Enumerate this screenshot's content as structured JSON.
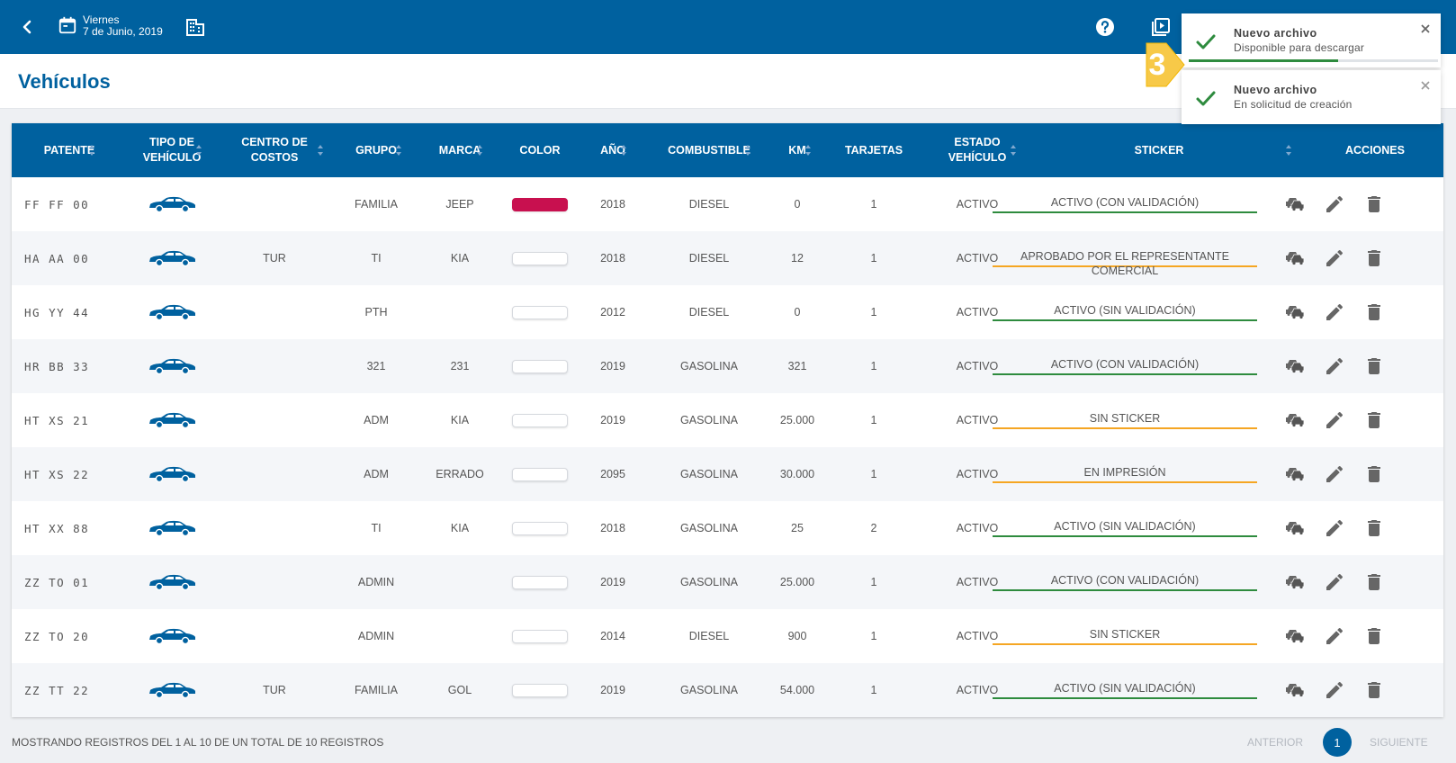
{
  "header": {
    "day": "Viernes",
    "date": "7 de Junio, 2019",
    "icons": [
      "back-arrow-icon",
      "calendar-icon",
      "building-icon",
      "help-icon",
      "play-video-icon"
    ]
  },
  "page_title": "Vehículos",
  "columns": {
    "patente": "PATENTE",
    "tipo": "TIPO DE VEHÍCULO",
    "centro": "CENTRO DE COSTOS",
    "grupo": "GRUPO",
    "marca": "MARCA",
    "color": "COLOR",
    "anio": "AÑO",
    "combustible": "COMBUSTIBLE",
    "km": "KM",
    "tarjetas": "TARJETAS",
    "estado": "ESTADO VEHÍCULO",
    "sticker": "STICKER",
    "acciones": "ACCIONES"
  },
  "rows": [
    {
      "patente": "FF FF 00",
      "centro": "",
      "grupo": "FAMILIA",
      "marca": "JEEP",
      "color": "#c8104f",
      "anio": "2018",
      "combustible": "DIESEL",
      "km": "0",
      "tarjetas": "1",
      "estado": "ACTIVO",
      "sticker": "ACTIVO (CON VALIDACIÓN)",
      "sticker_color": "#2e8b3e"
    },
    {
      "patente": "HA AA 00",
      "centro": "TUR",
      "grupo": "TI",
      "marca": "KIA",
      "color": "#ffffff",
      "anio": "2018",
      "combustible": "DIESEL",
      "km": "12",
      "tarjetas": "1",
      "estado": "ACTIVO",
      "sticker": "APROBADO POR EL REPRESENTANTE COMERCIAL",
      "sticker_color": "#f5a623"
    },
    {
      "patente": "HG YY 44",
      "centro": "",
      "grupo": "PTH",
      "marca": "",
      "color": "#ffffff",
      "anio": "2012",
      "combustible": "DIESEL",
      "km": "0",
      "tarjetas": "1",
      "estado": "ACTIVO",
      "sticker": "ACTIVO (SIN VALIDACIÓN)",
      "sticker_color": "#2e8b3e"
    },
    {
      "patente": "HR BB 33",
      "centro": "",
      "grupo": "321",
      "marca": "231",
      "color": "#ffffff",
      "anio": "2019",
      "combustible": "GASOLINA",
      "km": "321",
      "tarjetas": "1",
      "estado": "ACTIVO",
      "sticker": "ACTIVO (CON VALIDACIÓN)",
      "sticker_color": "#2e8b3e"
    },
    {
      "patente": "HT XS 21",
      "centro": "",
      "grupo": "ADM",
      "marca": "KIA",
      "color": "#ffffff",
      "anio": "2019",
      "combustible": "GASOLINA",
      "km": "25.000",
      "tarjetas": "1",
      "estado": "ACTIVO",
      "sticker": "SIN STICKER",
      "sticker_color": "#f5a623"
    },
    {
      "patente": "HT XS 22",
      "centro": "",
      "grupo": "ADM",
      "marca": "ERRADO",
      "color": "#ffffff",
      "anio": "2095",
      "combustible": "GASOLINA",
      "km": "30.000",
      "tarjetas": "1",
      "estado": "ACTIVO",
      "sticker": "EN IMPRESIÓN",
      "sticker_color": "#f5a623"
    },
    {
      "patente": "HT XX 88",
      "centro": "",
      "grupo": "TI",
      "marca": "KIA",
      "color": "#ffffff",
      "anio": "2018",
      "combustible": "GASOLINA",
      "km": "25",
      "tarjetas": "2",
      "estado": "ACTIVO",
      "sticker": "ACTIVO (SIN VALIDACIÓN)",
      "sticker_color": "#2e8b3e"
    },
    {
      "patente": "ZZ TO 01",
      "centro": "",
      "grupo": "ADMIN",
      "marca": "",
      "color": "#ffffff",
      "anio": "2019",
      "combustible": "GASOLINA",
      "km": "25.000",
      "tarjetas": "1",
      "estado": "ACTIVO",
      "sticker": "ACTIVO (CON VALIDACIÓN)",
      "sticker_color": "#2e8b3e"
    },
    {
      "patente": "ZZ TO 20",
      "centro": "",
      "grupo": "ADMIN",
      "marca": "",
      "color": "#ffffff",
      "anio": "2014",
      "combustible": "DIESEL",
      "km": "900",
      "tarjetas": "1",
      "estado": "ACTIVO",
      "sticker": "SIN STICKER",
      "sticker_color": "#f5a623"
    },
    {
      "patente": "ZZ TT 22",
      "centro": "TUR",
      "grupo": "FAMILIA",
      "marca": "GOL",
      "color": "#ffffff",
      "anio": "2019",
      "combustible": "GASOLINA",
      "km": "54.000",
      "tarjetas": "1",
      "estado": "ACTIVO",
      "sticker": "ACTIVO (SIN VALIDACIÓN)",
      "sticker_color": "#2e8b3e"
    }
  ],
  "footer": {
    "info": "MOSTRANDO REGISTROS DEL 1 AL 10 DE UN TOTAL DE 10 REGISTROS",
    "prev": "ANTERIOR",
    "page": "1",
    "next": "SIGUIENTE"
  },
  "toasts": [
    {
      "title": "Nuevo archivo",
      "subtitle": "Disponible para descargar",
      "progress": 0.6
    },
    {
      "title": "Nuevo archivo",
      "subtitle": "En solicitud de creación"
    }
  ],
  "badge": "3",
  "colors": {
    "primary": "#00619f",
    "success": "#2e8b3e",
    "warning": "#f5a623",
    "badge": "#f7c948"
  }
}
